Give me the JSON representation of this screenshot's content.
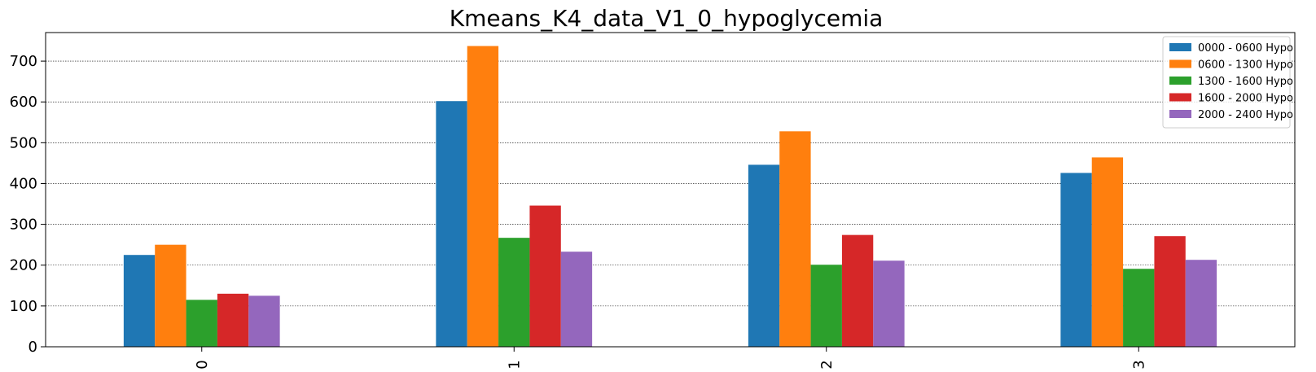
{
  "chart_data": {
    "type": "bar",
    "title": "Kmeans_K4_data_V1_0_hypoglycemia",
    "xlabel": "",
    "ylabel": "",
    "categories": [
      "0",
      "1",
      "2",
      "3"
    ],
    "ylim": [
      0,
      770
    ],
    "yticks": [
      0,
      100,
      200,
      300,
      400,
      500,
      600,
      700
    ],
    "grid": "y-dotted",
    "legend_position": "top-right",
    "series": [
      {
        "name": "0000 - 0600 Hypo",
        "color": "#1f77b4",
        "values": [
          225,
          602,
          446,
          426
        ]
      },
      {
        "name": "0600 - 1300 Hypo",
        "color": "#ff7f0e",
        "values": [
          250,
          737,
          528,
          464
        ]
      },
      {
        "name": "1300 - 1600 Hypo",
        "color": "#2ca02c",
        "values": [
          115,
          267,
          201,
          191
        ]
      },
      {
        "name": "1600 - 2000 Hypo",
        "color": "#d62728",
        "values": [
          130,
          346,
          274,
          271
        ]
      },
      {
        "name": "2000 - 2400 Hypo",
        "color": "#9467bd",
        "values": [
          125,
          233,
          211,
          213
        ]
      }
    ]
  }
}
